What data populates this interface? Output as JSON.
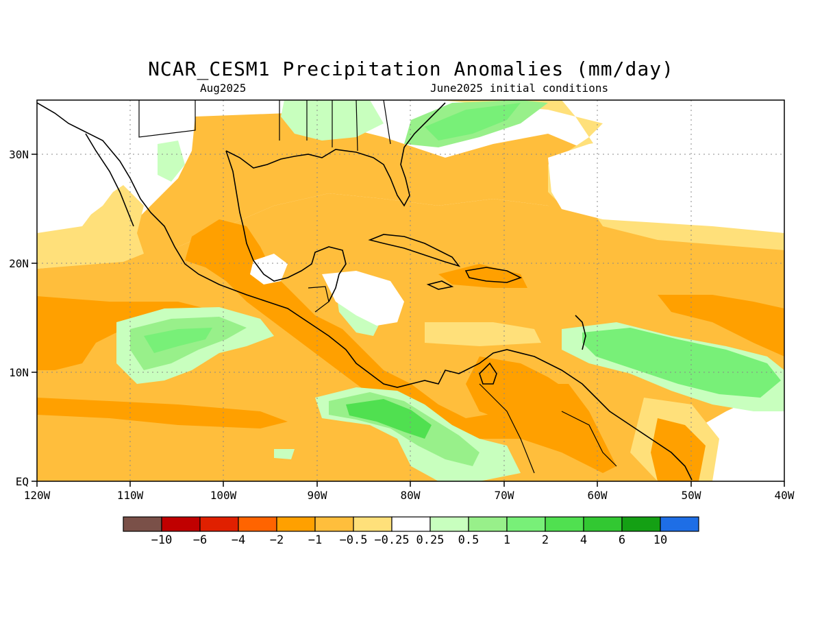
{
  "title": "NCAR_CESM1 Precipitation Anomalies (mm/day)",
  "subtitle_left": "Aug2025",
  "subtitle_right": "June2025 initial conditions",
  "map": {
    "lon_range": [
      -120,
      -40
    ],
    "lat_range": [
      0,
      35
    ],
    "x_ticks": [
      "120W",
      "110W",
      "100W",
      "90W",
      "80W",
      "70W",
      "60W",
      "50W",
      "40W"
    ],
    "y_ticks": [
      "EQ",
      "10N",
      "20N",
      "30N"
    ],
    "grid": "dotted"
  },
  "colorbar": {
    "colors": [
      "#7a5048",
      "#c00000",
      "#e02000",
      "#ff6400",
      "#ffa000",
      "#ffbe3c",
      "#ffe07a",
      "#ffffff",
      "#c8ffbe",
      "#98f08a",
      "#78f078",
      "#50e050",
      "#32c832",
      "#14a014",
      "#1e6ee6"
    ],
    "labels": [
      "−10",
      "−6",
      "−4",
      "−2",
      "−1",
      "−0.5",
      "−0.25",
      "0.25",
      "0.5",
      "1",
      "2",
      "4",
      "6",
      "10"
    ]
  }
}
